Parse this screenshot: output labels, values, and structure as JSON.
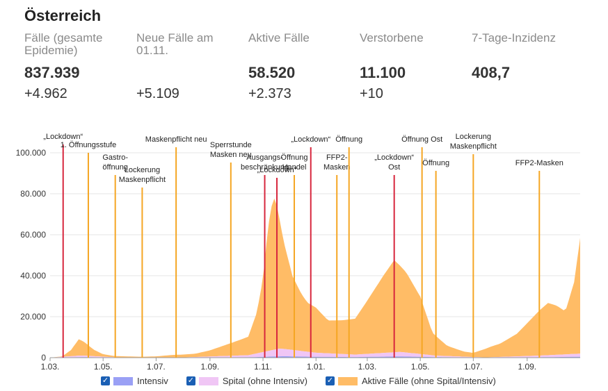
{
  "title": "Österreich",
  "stats": [
    {
      "label": "Fälle (gesamte Epidemie)",
      "value": "837.939",
      "change": "+4.962"
    },
    {
      "label": "Neue Fälle am 01.11.",
      "value": "",
      "change": "+5.109"
    },
    {
      "label": "Aktive Fälle",
      "value": "58.520",
      "change": "+2.373"
    },
    {
      "label": "Verstorbene",
      "value": "11.100",
      "change": "+10"
    },
    {
      "label": "7-Tage-Inzidenz",
      "value": "408,7",
      "change": ""
    }
  ],
  "chart_data": {
    "type": "area",
    "title": "",
    "xlabel": "",
    "ylabel": "",
    "ylim": [
      0,
      100000
    ],
    "y_ticks": [
      "0",
      "20.000",
      "40.000",
      "60.000",
      "80.000",
      "100.000"
    ],
    "x_ticks": [
      "1.03.",
      "1.05.",
      "1.07.",
      "1.09.",
      "1.11.",
      "1.01.",
      "1.03.",
      "1.05.",
      "1.07.",
      "1.09."
    ],
    "x_dates": [
      "2020-03-01",
      "2020-05-01",
      "2020-07-01",
      "2020-09-01",
      "2020-11-01",
      "2021-01-01",
      "2021-03-01",
      "2021-05-01",
      "2021-07-01",
      "2021-09-01"
    ],
    "x_range": [
      "2020-03-01",
      "2021-11-01"
    ],
    "stacked": true,
    "series": [
      {
        "name": "Intensiv",
        "color": "#9aa0f5",
        "points": [
          [
            "2020-03-01",
            0
          ],
          [
            "2020-04-08",
            250
          ],
          [
            "2020-05-15",
            60
          ],
          [
            "2020-08-01",
            30
          ],
          [
            "2020-10-15",
            200
          ],
          [
            "2020-11-25",
            700
          ],
          [
            "2021-01-01",
            400
          ],
          [
            "2021-02-15",
            300
          ],
          [
            "2021-04-08",
            600
          ],
          [
            "2021-05-20",
            250
          ],
          [
            "2021-07-15",
            20
          ],
          [
            "2021-09-15",
            200
          ],
          [
            "2021-11-01",
            450
          ]
        ]
      },
      {
        "name": "Spital (ohne Intensiv)",
        "color": "#f0c6f5",
        "points": [
          [
            "2020-03-01",
            0
          ],
          [
            "2020-04-05",
            800
          ],
          [
            "2020-05-15",
            100
          ],
          [
            "2020-08-01",
            100
          ],
          [
            "2020-10-15",
            1000
          ],
          [
            "2020-11-20",
            3800
          ],
          [
            "2021-01-01",
            2000
          ],
          [
            "2021-02-15",
            1200
          ],
          [
            "2021-04-08",
            2200
          ],
          [
            "2021-05-20",
            700
          ],
          [
            "2021-07-15",
            100
          ],
          [
            "2021-09-15",
            800
          ],
          [
            "2021-11-01",
            1500
          ]
        ]
      },
      {
        "name": "Aktive Fälle (ohne Spital/Intensiv)",
        "color": "#ffbc66",
        "points": [
          [
            "2020-03-01",
            0
          ],
          [
            "2020-03-15",
            200
          ],
          [
            "2020-03-25",
            3000
          ],
          [
            "2020-04-03",
            8000
          ],
          [
            "2020-04-10",
            6500
          ],
          [
            "2020-04-20",
            3200
          ],
          [
            "2020-05-01",
            1200
          ],
          [
            "2020-05-15",
            600
          ],
          [
            "2020-06-15",
            300
          ],
          [
            "2020-07-01",
            500
          ],
          [
            "2020-07-20",
            1200
          ],
          [
            "2020-08-15",
            1600
          ],
          [
            "2020-09-01",
            3000
          ],
          [
            "2020-09-20",
            5500
          ],
          [
            "2020-10-01",
            7000
          ],
          [
            "2020-10-15",
            9000
          ],
          [
            "2020-10-25",
            20000
          ],
          [
            "2020-11-01",
            36000
          ],
          [
            "2020-11-07",
            61000
          ],
          [
            "2020-11-13",
            75000
          ],
          [
            "2020-11-17",
            70000
          ],
          [
            "2020-11-25",
            52000
          ],
          [
            "2020-12-05",
            36000
          ],
          [
            "2020-12-15",
            28000
          ],
          [
            "2020-12-22",
            24000
          ],
          [
            "2021-01-01",
            22000
          ],
          [
            "2021-01-15",
            16000
          ],
          [
            "2021-02-01",
            16500
          ],
          [
            "2021-02-15",
            17500
          ],
          [
            "2021-03-01",
            26000
          ],
          [
            "2021-03-20",
            38000
          ],
          [
            "2021-04-01",
            45000
          ],
          [
            "2021-04-15",
            39000
          ],
          [
            "2021-05-01",
            28000
          ],
          [
            "2021-05-15",
            11000
          ],
          [
            "2021-06-01",
            5000
          ],
          [
            "2021-06-20",
            2500
          ],
          [
            "2021-07-01",
            2000
          ],
          [
            "2021-07-20",
            5000
          ],
          [
            "2021-08-01",
            6500
          ],
          [
            "2021-08-20",
            11000
          ],
          [
            "2021-09-01",
            16000
          ],
          [
            "2021-09-15",
            22000
          ],
          [
            "2021-09-25",
            25500
          ],
          [
            "2021-10-05",
            24000
          ],
          [
            "2021-10-15",
            21000
          ],
          [
            "2021-10-25",
            35000
          ],
          [
            "2021-11-01",
            56500
          ]
        ]
      }
    ],
    "annotations": [
      {
        "date": "2020-03-16",
        "color": "#d7263d",
        "label": [
          "„Lockdown“"
        ]
      },
      {
        "date": "2020-04-14",
        "color": "#f5a623",
        "label": [
          "1. Öffnungsstufe"
        ]
      },
      {
        "date": "2020-05-15",
        "color": "#f5a623",
        "label": [
          "Gastro-",
          "öffnung"
        ]
      },
      {
        "date": "2020-06-15",
        "color": "#f5a623",
        "label": [
          "Lockerung",
          "Maskenpflicht"
        ]
      },
      {
        "date": "2020-07-24",
        "color": "#f5a623",
        "label": [
          "Maskenpflicht neu"
        ]
      },
      {
        "date": "2020-09-25",
        "color": "#f5a623",
        "label": [
          "Sperrstunde",
          "Masken neu"
        ]
      },
      {
        "date": "2020-11-03",
        "color": "#d7263d",
        "label": [
          "Ausgangs-",
          "beschränkung"
        ]
      },
      {
        "date": "2020-11-17",
        "color": "#d7263d",
        "label": [
          "„Lockdown“"
        ]
      },
      {
        "date": "2020-12-07",
        "color": "#f5a623",
        "label": [
          "Öffnung",
          "Handel"
        ]
      },
      {
        "date": "2020-12-26",
        "color": "#d7263d",
        "label": [
          "„Lockdown“"
        ]
      },
      {
        "date": "2021-01-25",
        "color": "#f5a623",
        "label": [
          "FFP2-",
          "Masken"
        ]
      },
      {
        "date": "2021-02-08",
        "color": "#f5a623",
        "label": [
          "Öffnung"
        ]
      },
      {
        "date": "2021-04-01",
        "color": "#d7263d",
        "label": [
          "„Lockdown“",
          "Ost"
        ]
      },
      {
        "date": "2021-05-03",
        "color": "#f5a623",
        "label": [
          "Öffnung Ost"
        ]
      },
      {
        "date": "2021-05-19",
        "color": "#f5a623",
        "label": [
          "Öffnung"
        ]
      },
      {
        "date": "2021-07-01",
        "color": "#f5a623",
        "label": [
          "Lockerung",
          "Maskenpflicht"
        ]
      },
      {
        "date": "2021-09-15",
        "color": "#f5a623",
        "label": [
          "FFP2-Masken"
        ]
      }
    ]
  }
}
